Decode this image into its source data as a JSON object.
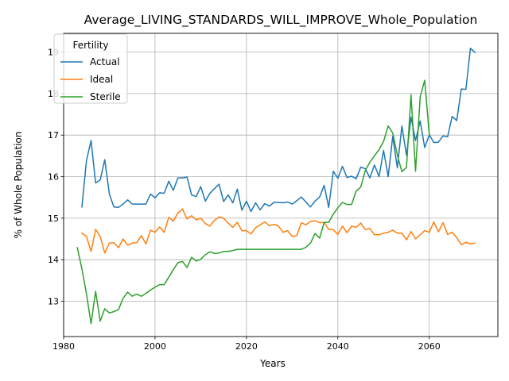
{
  "chart_data": {
    "type": "line",
    "title": "Average_LIVING_STANDARDS_WILL_IMPROVE_Whole_Population",
    "xlabel": "Years",
    "ylabel": "% of Whole Population",
    "xlim": [
      1980,
      2075
    ],
    "ylim": [
      12.15,
      19.45
    ],
    "xticks": [
      1980,
      2000,
      2020,
      2040,
      2060
    ],
    "yticks": [
      13,
      14,
      15,
      16,
      17,
      18,
      19
    ],
    "grid": true,
    "legend": {
      "title": "Fertility",
      "position": "top-left"
    },
    "series": [
      {
        "name": "Actual",
        "color": "#1f77b4",
        "x": [
          1984,
          1985,
          1986,
          1987,
          1988,
          1989,
          1990,
          1991,
          1992,
          1993,
          1994,
          1995,
          1996,
          1997,
          1998,
          1999,
          2000,
          2001,
          2002,
          2003,
          2004,
          2005,
          2006,
          2007,
          2008,
          2009,
          2010,
          2011,
          2012,
          2013,
          2014,
          2015,
          2016,
          2017,
          2018,
          2019,
          2020,
          2021,
          2022,
          2023,
          2024,
          2025,
          2026,
          2027,
          2028,
          2029,
          2030,
          2031,
          2032,
          2033,
          2034,
          2035,
          2036,
          2037,
          2038,
          2039,
          2040,
          2041,
          2042,
          2043,
          2044,
          2045,
          2046,
          2047,
          2048,
          2049,
          2050,
          2051,
          2052,
          2053,
          2054,
          2055,
          2056,
          2057,
          2058,
          2059,
          2060,
          2061,
          2062,
          2063,
          2064,
          2065,
          2066,
          2067,
          2068,
          2069,
          2070
        ],
        "values": [
          15.27,
          16.38,
          16.87,
          15.85,
          15.92,
          16.41,
          15.58,
          15.27,
          15.26,
          15.34,
          15.44,
          15.34,
          15.34,
          15.34,
          15.34,
          15.58,
          15.49,
          15.61,
          15.6,
          15.89,
          15.67,
          15.97,
          15.97,
          15.99,
          15.56,
          15.52,
          15.76,
          15.41,
          15.6,
          15.71,
          15.82,
          15.4,
          15.56,
          15.37,
          15.7,
          15.19,
          15.41,
          15.16,
          15.37,
          15.2,
          15.35,
          15.29,
          15.38,
          15.38,
          15.37,
          15.39,
          15.34,
          15.42,
          15.51,
          15.39,
          15.27,
          15.41,
          15.51,
          15.79,
          15.26,
          16.13,
          15.96,
          16.25,
          15.98,
          16.01,
          15.95,
          16.23,
          16.19,
          15.97,
          16.28,
          16.0,
          16.63,
          16.0,
          16.97,
          16.21,
          17.22,
          16.51,
          17.43,
          16.87,
          17.34,
          16.7,
          17.01,
          16.82,
          16.83,
          16.98,
          16.96,
          17.45,
          17.35,
          18.11,
          18.1,
          19.09,
          18.99
        ]
      },
      {
        "name": "Ideal",
        "color": "#ff7f0e",
        "x": [
          1984,
          1985,
          1986,
          1987,
          1988,
          1989,
          1990,
          1991,
          1992,
          1993,
          1994,
          1995,
          1996,
          1997,
          1998,
          1999,
          2000,
          2001,
          2002,
          2003,
          2004,
          2005,
          2006,
          2007,
          2008,
          2009,
          2010,
          2011,
          2012,
          2013,
          2014,
          2015,
          2016,
          2017,
          2018,
          2019,
          2020,
          2021,
          2022,
          2023,
          2024,
          2025,
          2026,
          2027,
          2028,
          2029,
          2030,
          2031,
          2032,
          2033,
          2034,
          2035,
          2036,
          2037,
          2038,
          2039,
          2040,
          2041,
          2042,
          2043,
          2044,
          2045,
          2046,
          2047,
          2048,
          2049,
          2050,
          2051,
          2052,
          2053,
          2054,
          2055,
          2056,
          2057,
          2058,
          2059,
          2060,
          2061,
          2062,
          2063,
          2064,
          2065,
          2066,
          2067,
          2068,
          2069,
          2070
        ],
        "values": [
          14.64,
          14.56,
          14.2,
          14.73,
          14.56,
          14.16,
          14.4,
          14.41,
          14.29,
          14.5,
          14.35,
          14.4,
          14.41,
          14.58,
          14.38,
          14.71,
          14.66,
          14.79,
          14.66,
          15.02,
          14.93,
          15.13,
          15.22,
          14.98,
          15.06,
          14.96,
          15.0,
          14.87,
          14.81,
          14.95,
          15.03,
          15.0,
          14.88,
          14.78,
          14.9,
          14.7,
          14.7,
          14.62,
          14.77,
          14.84,
          14.91,
          14.82,
          14.85,
          14.81,
          14.66,
          14.7,
          14.56,
          14.58,
          14.89,
          14.84,
          14.92,
          14.94,
          14.89,
          14.9,
          14.73,
          14.72,
          14.61,
          14.81,
          14.65,
          14.81,
          14.78,
          14.88,
          14.73,
          14.75,
          14.6,
          14.6,
          14.64,
          14.66,
          14.71,
          14.64,
          14.64,
          14.48,
          14.68,
          14.5,
          14.6,
          14.7,
          14.66,
          14.91,
          14.67,
          14.89,
          14.61,
          14.66,
          14.53,
          14.36,
          14.42,
          14.38,
          14.4
        ]
      },
      {
        "name": "Sterile",
        "color": "#2ca02c",
        "x": [
          1983,
          1984,
          1985,
          1986,
          1987,
          1988,
          1989,
          1990,
          1991,
          1992,
          1993,
          1994,
          1995,
          1996,
          1997,
          1998,
          1999,
          2000,
          2001,
          2002,
          2003,
          2004,
          2005,
          2006,
          2007,
          2008,
          2009,
          2010,
          2011,
          2012,
          2013,
          2014,
          2015,
          2016,
          2017,
          2018,
          2019,
          2020,
          2021,
          2022,
          2023,
          2024,
          2025,
          2026,
          2027,
          2028,
          2029,
          2030,
          2031,
          2032,
          2033,
          2034,
          2035,
          2036,
          2037,
          2038,
          2039,
          2040,
          2041,
          2042,
          2043,
          2044,
          2045,
          2046,
          2047,
          2048,
          2049,
          2050,
          2051,
          2052,
          2053,
          2054,
          2055,
          2056,
          2057,
          2058,
          2059,
          2060
        ],
        "values": [
          14.29,
          13.78,
          13.18,
          12.46,
          13.24,
          12.52,
          12.82,
          12.72,
          12.75,
          12.8,
          13.07,
          13.22,
          13.12,
          13.17,
          13.12,
          13.19,
          13.27,
          13.34,
          13.4,
          13.4,
          13.58,
          13.76,
          13.93,
          13.96,
          13.81,
          14.06,
          13.97,
          14.01,
          14.12,
          14.19,
          14.15,
          14.16,
          14.2,
          14.2,
          14.22,
          14.25,
          14.25,
          14.25,
          14.25,
          14.25,
          14.25,
          14.25,
          14.25,
          14.25,
          14.25,
          14.25,
          14.25,
          14.25,
          14.25,
          14.25,
          14.3,
          14.4,
          14.63,
          14.52,
          14.9,
          14.9,
          15.1,
          15.25,
          15.38,
          15.33,
          15.33,
          15.65,
          15.75,
          16.15,
          16.35,
          16.5,
          16.65,
          16.85,
          17.22,
          17.05,
          16.52,
          16.12,
          16.22,
          17.97,
          16.13,
          17.92,
          18.32,
          17.0
        ]
      }
    ]
  }
}
